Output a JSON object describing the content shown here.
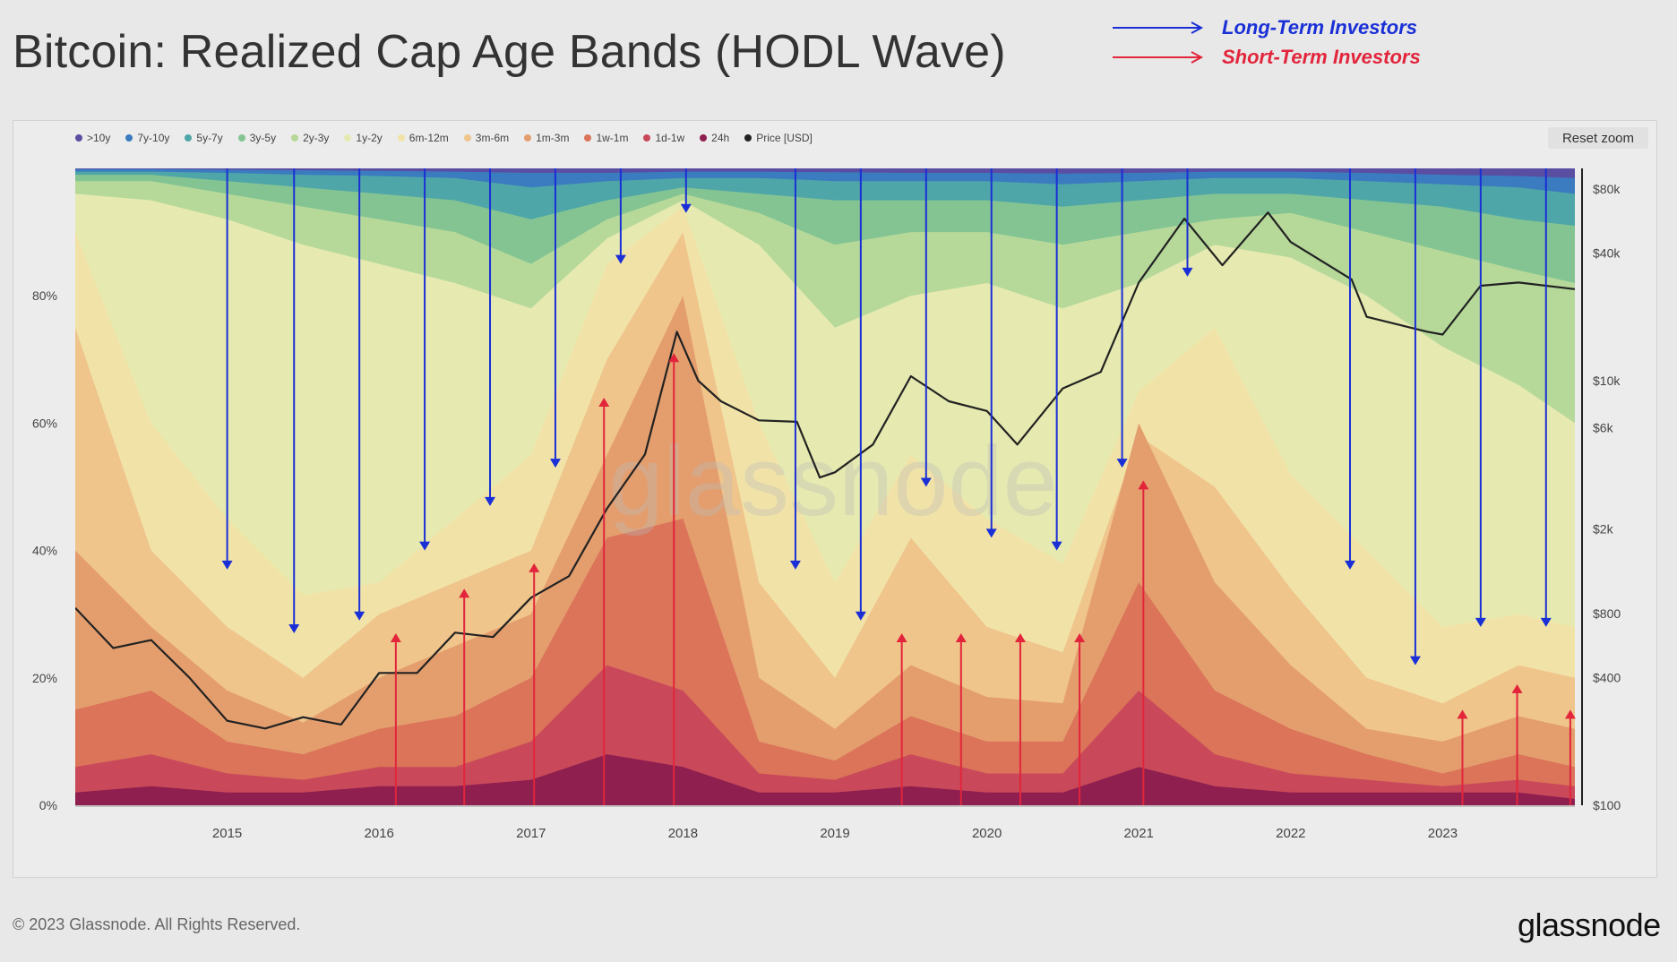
{
  "title": "Bitcoin: Realized Cap Age Bands (HODL Wave)",
  "annotations": {
    "long_term": {
      "label": "Long-Term Investors",
      "color": "#1a2fd6"
    },
    "short_term": {
      "label": "Short-Term Investors",
      "color": "#e2253b"
    }
  },
  "reset_zoom": "Reset zoom",
  "watermark": "glassnode",
  "footer": "© 2023 Glassnode. All Rights Reserved.",
  "logo": "glassnode",
  "legend": [
    {
      "label": ">10y",
      "color": "#5a4ea3"
    },
    {
      "label": "7y-10y",
      "color": "#3b7bbf"
    },
    {
      "label": "5y-7y",
      "color": "#4fa6a8"
    },
    {
      "label": "3y-5y",
      "color": "#84c493"
    },
    {
      "label": "2y-3y",
      "color": "#b6d99a"
    },
    {
      "label": "1y-2y",
      "color": "#e6eab0"
    },
    {
      "label": "6m-12m",
      "color": "#f1e3a8"
    },
    {
      "label": "3m-6m",
      "color": "#efc58c"
    },
    {
      "label": "1m-3m",
      "color": "#e49e6e"
    },
    {
      "label": "1w-1m",
      "color": "#db7459"
    },
    {
      "label": "1d-1w",
      "color": "#c9495a"
    },
    {
      "label": "24h",
      "color": "#8e1f4f"
    },
    {
      "label": "Price [USD]",
      "color": "#222222"
    }
  ],
  "chart_data": {
    "type": "area",
    "stacking": "percent",
    "x_range": [
      2014.0,
      2023.87
    ],
    "ylim": [
      0,
      100
    ],
    "y_ticks": [
      "0%",
      "20%",
      "40%",
      "60%",
      "80%"
    ],
    "y2_scale": "log",
    "y2_range": [
      100,
      100000
    ],
    "y2_ticks": [
      {
        "label": "$100",
        "value": 100
      },
      {
        "label": "$400",
        "value": 400
      },
      {
        "label": "$800",
        "value": 800
      },
      {
        "label": "$2k",
        "value": 2000
      },
      {
        "label": "$6k",
        "value": 6000
      },
      {
        "label": "$10k",
        "value": 10000
      },
      {
        "label": "$40k",
        "value": 40000
      },
      {
        "label": "$80k",
        "value": 80000
      }
    ],
    "x_ticks": [
      "2015",
      "2016",
      "2017",
      "2018",
      "2019",
      "2020",
      "2021",
      "2022",
      "2023"
    ],
    "x": [
      2014.0,
      2014.5,
      2015.0,
      2015.5,
      2016.0,
      2016.5,
      2017.0,
      2017.5,
      2018.0,
      2018.5,
      2019.0,
      2019.5,
      2020.0,
      2020.5,
      2021.0,
      2021.5,
      2022.0,
      2022.5,
      2023.0,
      2023.5,
      2023.87
    ],
    "band_boundaries": {
      "description": "cumulative % from bottom (24h upward); >10y fills to 100%",
      "labels": [
        "24h",
        "1d-1w",
        "1w-1m",
        "1m-3m",
        "3m-6m",
        "6m-12m",
        "1y-2y",
        "2y-3y",
        "3y-5y",
        "5y-7y",
        "7y-10y"
      ],
      "cumulative": [
        [
          2,
          3,
          2,
          2,
          3,
          3,
          4,
          8,
          6,
          2,
          2,
          3,
          2,
          2,
          6,
          3,
          2,
          2,
          2,
          2,
          1
        ],
        [
          6,
          8,
          5,
          4,
          6,
          6,
          10,
          22,
          18,
          5,
          4,
          8,
          5,
          5,
          18,
          8,
          5,
          4,
          3,
          4,
          3
        ],
        [
          15,
          18,
          10,
          8,
          12,
          14,
          20,
          42,
          45,
          10,
          7,
          14,
          10,
          10,
          35,
          18,
          12,
          8,
          5,
          8,
          6
        ],
        [
          40,
          28,
          18,
          13,
          20,
          25,
          30,
          55,
          80,
          20,
          12,
          22,
          17,
          16,
          60,
          35,
          22,
          12,
          10,
          14,
          12
        ],
        [
          75,
          40,
          28,
          20,
          30,
          35,
          40,
          70,
          90,
          35,
          20,
          42,
          28,
          24,
          58,
          50,
          34,
          20,
          16,
          22,
          20
        ],
        [
          90,
          60,
          45,
          33,
          35,
          45,
          55,
          85,
          94,
          60,
          35,
          55,
          45,
          38,
          65,
          75,
          52,
          40,
          28,
          30,
          28
        ],
        [
          96,
          95,
          92,
          88,
          85,
          82,
          78,
          89,
          95,
          88,
          75,
          80,
          82,
          78,
          82,
          88,
          86,
          80,
          72,
          66,
          60
        ],
        [
          98,
          98,
          96,
          94,
          92,
          90,
          85,
          92,
          96,
          93,
          88,
          90,
          90,
          88,
          90,
          92,
          93,
          90,
          87,
          84,
          82
        ],
        [
          99,
          99,
          98,
          97,
          96,
          95,
          92,
          95,
          97,
          96,
          95,
          95,
          95,
          94,
          95,
          96,
          96,
          95,
          94,
          92,
          91
        ],
        [
          99.5,
          99.5,
          99.3,
          99,
          98.8,
          98.5,
          97,
          98,
          98.5,
          98.5,
          98,
          98,
          98,
          97.5,
          98,
          98.5,
          98.5,
          98,
          97.5,
          97,
          96
        ],
        [
          99.9,
          99.9,
          99.8,
          99.7,
          99.6,
          99.5,
          99.3,
          99.3,
          99.5,
          99.5,
          99.4,
          99.3,
          99.3,
          99.2,
          99.3,
          99.5,
          99.5,
          99.3,
          99,
          98.8,
          98.5
        ]
      ]
    },
    "price_series": {
      "name": "Price [USD]",
      "x": [
        2014.0,
        2014.25,
        2014.5,
        2014.75,
        2015.0,
        2015.25,
        2015.5,
        2015.75,
        2016.0,
        2016.25,
        2016.5,
        2016.75,
        2017.0,
        2017.25,
        2017.5,
        2017.75,
        2017.96,
        2018.1,
        2018.25,
        2018.5,
        2018.75,
        2018.9,
        2019.0,
        2019.25,
        2019.5,
        2019.75,
        2020.0,
        2020.2,
        2020.5,
        2020.75,
        2021.0,
        2021.3,
        2021.55,
        2021.85,
        2022.0,
        2022.4,
        2022.5,
        2022.9,
        2023.0,
        2023.25,
        2023.5,
        2023.87
      ],
      "y": [
        850,
        550,
        600,
        400,
        250,
        230,
        260,
        240,
        420,
        420,
        650,
        620,
        950,
        1200,
        2500,
        4500,
        17000,
        10000,
        8000,
        6500,
        6400,
        3500,
        3700,
        5000,
        10500,
        8000,
        7200,
        5000,
        9200,
        11000,
        29000,
        58000,
        35000,
        62000,
        45000,
        30000,
        20000,
        17000,
        16500,
        28000,
        29000,
        27000
      ]
    },
    "long_term_arrows": [
      {
        "x": 2015.0,
        "to_pct": 37
      },
      {
        "x": 2015.44,
        "to_pct": 27
      },
      {
        "x": 2015.87,
        "to_pct": 29
      },
      {
        "x": 2016.3,
        "to_pct": 40
      },
      {
        "x": 2016.73,
        "to_pct": 47
      },
      {
        "x": 2017.16,
        "to_pct": 53
      },
      {
        "x": 2017.59,
        "to_pct": 85
      },
      {
        "x": 2018.02,
        "to_pct": 93
      },
      {
        "x": 2018.74,
        "to_pct": 37
      },
      {
        "x": 2019.17,
        "to_pct": 29
      },
      {
        "x": 2019.6,
        "to_pct": 50
      },
      {
        "x": 2020.03,
        "to_pct": 42
      },
      {
        "x": 2020.46,
        "to_pct": 40
      },
      {
        "x": 2020.89,
        "to_pct": 53
      },
      {
        "x": 2021.32,
        "to_pct": 83
      },
      {
        "x": 2022.39,
        "to_pct": 37
      },
      {
        "x": 2022.82,
        "to_pct": 22
      },
      {
        "x": 2023.25,
        "to_pct": 28
      },
      {
        "x": 2023.68,
        "to_pct": 28
      }
    ],
    "short_term_arrows": [
      {
        "x": 2016.11,
        "to_pct": 27
      },
      {
        "x": 2016.56,
        "to_pct": 34
      },
      {
        "x": 2017.02,
        "to_pct": 38
      },
      {
        "x": 2017.48,
        "to_pct": 64
      },
      {
        "x": 2017.94,
        "to_pct": 71
      },
      {
        "x": 2019.44,
        "to_pct": 27
      },
      {
        "x": 2019.83,
        "to_pct": 27
      },
      {
        "x": 2020.22,
        "to_pct": 27
      },
      {
        "x": 2020.61,
        "to_pct": 27
      },
      {
        "x": 2021.03,
        "to_pct": 51
      },
      {
        "x": 2023.13,
        "to_pct": 15
      },
      {
        "x": 2023.49,
        "to_pct": 19
      },
      {
        "x": 2023.84,
        "to_pct": 15
      }
    ]
  }
}
